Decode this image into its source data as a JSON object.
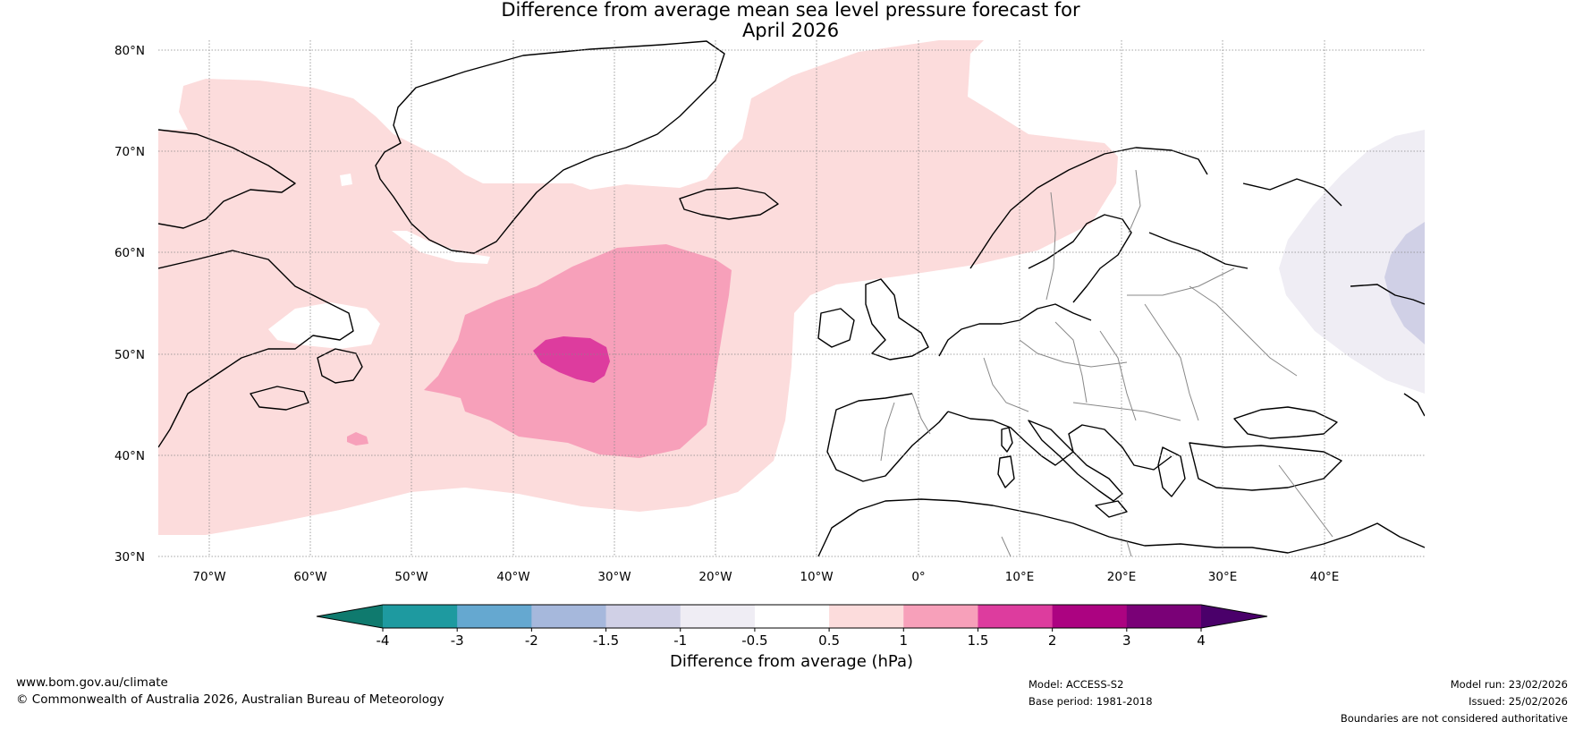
{
  "title": {
    "line1": "Difference from average mean sea level pressure forecast for",
    "line2": "April 2026"
  },
  "map": {
    "region": "North Atlantic and Europe",
    "lat_labels": [
      "80°N",
      "70°N",
      "60°N",
      "50°N",
      "40°N",
      "30°N"
    ],
    "lon_labels": [
      "70°W",
      "60°W",
      "50°W",
      "40°W",
      "30°W",
      "20°W",
      "10°W",
      "0°",
      "10°E",
      "20°E",
      "30°E",
      "40°E"
    ]
  },
  "colorbar": {
    "label": "Difference from average (hPa)",
    "ticks": [
      "-4",
      "-3",
      "-2",
      "-1.5",
      "-1",
      "-0.5",
      "0.5",
      "1",
      "1.5",
      "2",
      "3",
      "4"
    ],
    "colors": [
      "#0f7a6e",
      "#1e9aa0",
      "#65a8d0",
      "#a6b8dc",
      "#d0d0e6",
      "#efedf4",
      "#ffffff",
      "#fcdcdc",
      "#f7a0ba",
      "#dd3c9e",
      "#ac0381",
      "#7a0177",
      "#4a006a"
    ]
  },
  "footer": {
    "website": "www.bom.gov.au/climate",
    "copyright": "© Commonwealth of Australia 2026, Australian Bureau of Meteorology",
    "model": "Model: ACCESS-S2",
    "base_period": "Base period: 1981-2018",
    "model_run": "Model run: 23/02/2026",
    "issued": "Issued: 25/02/2026",
    "disclaimer": "Boundaries are not considered authoritative"
  }
}
